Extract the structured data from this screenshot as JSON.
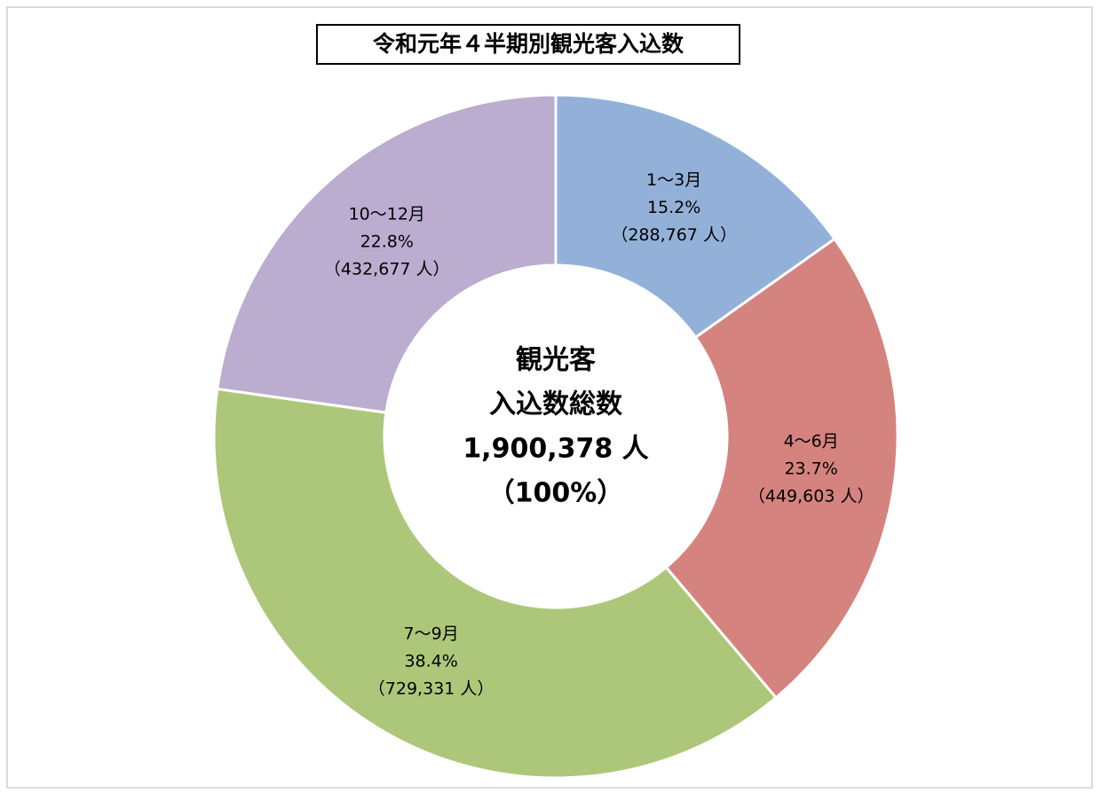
{
  "chart_data": {
    "type": "donut",
    "title": "令和元年４半期別観光客入込数",
    "categories": [
      "1～3月",
      "4～6月",
      "7～9月",
      "10～12月"
    ],
    "values": [
      15.2,
      23.7,
      38.4,
      22.8
    ],
    "value_labels": [
      "15.2%",
      "23.7%",
      "38.4%",
      "22.8%"
    ],
    "counts": [
      288767,
      449603,
      729331,
      432677
    ],
    "count_labels": [
      "（288,767 人）",
      "（449,603 人）",
      "（729,331 人）",
      "（432,677 人）"
    ],
    "colors": [
      "#93b1d8",
      "#d5837f",
      "#adc77a",
      "#baadd0"
    ],
    "center_text": [
      "観光客",
      "入込数総数",
      "1,900,378 人",
      "（100%）"
    ]
  }
}
